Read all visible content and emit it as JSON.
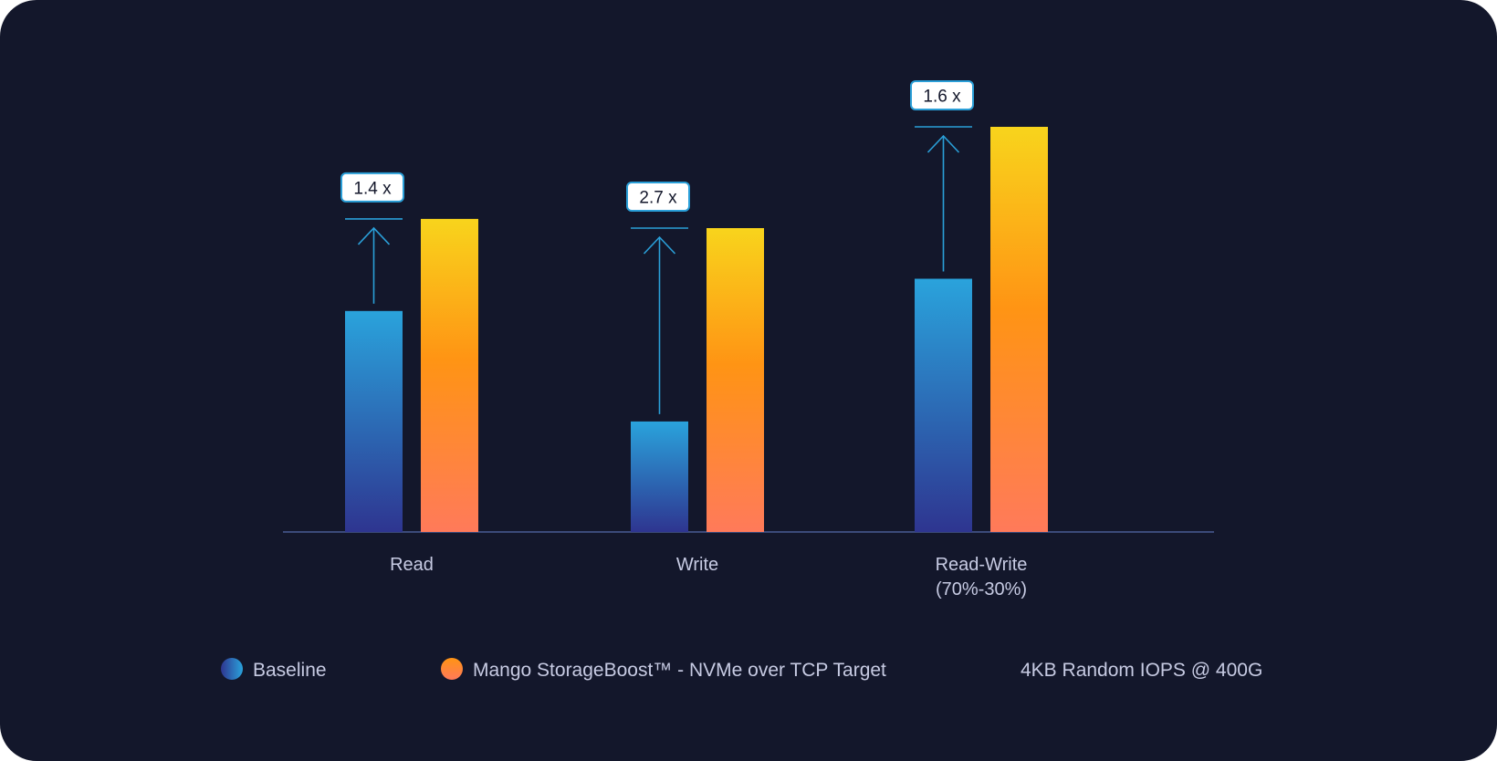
{
  "chart_data": {
    "type": "bar",
    "categories": [
      "Read",
      "Write",
      "Read-Write (70%-30%)"
    ],
    "category_lines": [
      [
        "Read"
      ],
      [
        "Write"
      ],
      [
        "Read-Write",
        "(70%-30%)"
      ]
    ],
    "series": [
      {
        "name": "Baseline",
        "values": [
          2.4,
          1.2,
          2.75
        ]
      },
      {
        "name": "Mango StorageBoost™ - NVMe over TCP Target",
        "values": [
          3.4,
          3.3,
          4.4
        ]
      }
    ],
    "annotations": [
      "1.4 x",
      "2.7 x",
      "1.6 x"
    ],
    "note": "4KB Random IOPS @ 400G",
    "ylim": [
      0,
      4.4
    ],
    "grid": false,
    "legend_position": "bottom",
    "colors": {
      "background": "#13172b",
      "axis": "#3b4a7a",
      "arrow": "#2a9fd8",
      "annotation_border": "#2a9fd8",
      "annotation_fill": "#ffffff",
      "baseline_top": "#2aa3dc",
      "baseline_bottom": "#2e3590",
      "boost_top": "#f8d41c",
      "boost_mid": "#ff9414",
      "boost_bottom": "#ff7a5a"
    }
  }
}
